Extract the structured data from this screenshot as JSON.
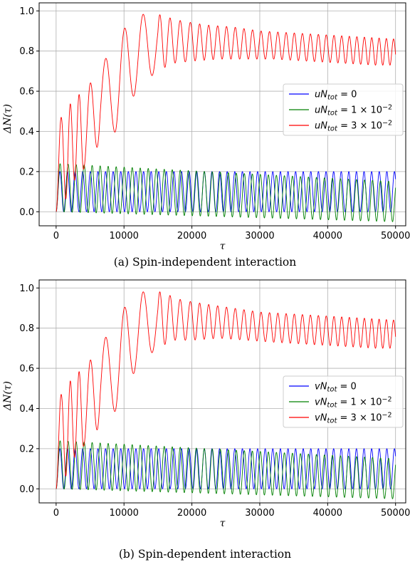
{
  "chart_data": [
    {
      "type": "line",
      "panel": "a",
      "caption": "(a) Spin-independent interaction",
      "xlabel": "τ",
      "ylabel": "ΔN(τ)",
      "xlim": [
        -2500,
        51500
      ],
      "ylim": [
        -0.07,
        1.04
      ],
      "xticks": [
        0,
        10000,
        20000,
        30000,
        40000,
        50000
      ],
      "yticks": [
        0.0,
        0.2,
        0.4,
        0.6,
        0.8,
        1.0
      ],
      "xtick_labels": [
        "0",
        "10000",
        "20000",
        "30000",
        "40000",
        "50000"
      ],
      "ytick_labels": [
        "0.0",
        "0.2",
        "0.4",
        "0.6",
        "0.8",
        "1.0"
      ],
      "grid": true,
      "legend_position": "right",
      "series": [
        {
          "name": "uN_tot = 0",
          "legend_var": "uN",
          "legend_sub": "tot",
          "legend_rhs": "= 0",
          "legend_exp": "",
          "color": "#0000ff",
          "model": {
            "kind": "sq_sine",
            "amp": 0.2,
            "period": 1120
          }
        },
        {
          "name": "uN_tot = 1 × 10^-2",
          "legend_var": "uN",
          "legend_sub": "tot",
          "legend_rhs": "= 1 × 10",
          "legend_exp": "−2",
          "color": "#008000",
          "model": {
            "kind": "decaying_beat",
            "amp": 0.24,
            "period": 1180,
            "offset_end": 0.05,
            "amp_end": 0.2
          }
        },
        {
          "name": "uN_tot = 3 × 10^-2",
          "legend_var": "uN",
          "legend_sub": "tot",
          "legend_rhs": "= 3 × 10",
          "legend_exp": "−2",
          "color": "#ff0000",
          "model": {
            "kind": "rise_osc",
            "peaks": [
              [
                1000,
                0.47
              ],
              [
                2300,
                0.55
              ],
              [
                3600,
                0.59
              ],
              [
                5300,
                0.65
              ],
              [
                7600,
                0.78
              ],
              [
                10400,
                0.93
              ],
              [
                13600,
                1.0
              ],
              [
                16200,
                0.97
              ],
              [
                18500,
                0.95
              ],
              [
                22000,
                0.93
              ],
              [
                26000,
                0.92
              ],
              [
                30000,
                0.9
              ],
              [
                35000,
                0.89
              ],
              [
                40000,
                0.88
              ],
              [
                45000,
                0.87
              ],
              [
                49800,
                0.86
              ]
            ],
            "troughs": [
              [
                0,
                0.0
              ],
              [
                1800,
                0.08
              ],
              [
                3000,
                0.18
              ],
              [
                4300,
                0.22
              ],
              [
                6200,
                0.33
              ],
              [
                8800,
                0.4
              ],
              [
                11800,
                0.6
              ],
              [
                14800,
                0.7
              ],
              [
                17400,
                0.74
              ],
              [
                20000,
                0.75
              ],
              [
                24000,
                0.76
              ],
              [
                28000,
                0.76
              ],
              [
                32000,
                0.76
              ],
              [
                37000,
                0.75
              ],
              [
                42000,
                0.74
              ],
              [
                47000,
                0.73
              ],
              [
                50000,
                0.73
              ]
            ]
          }
        }
      ]
    },
    {
      "type": "line",
      "panel": "b",
      "caption": "(b) Spin-dependent interaction",
      "xlabel": "τ",
      "ylabel": "ΔN(τ)",
      "xlim": [
        -2500,
        51500
      ],
      "ylim": [
        -0.07,
        1.04
      ],
      "xticks": [
        0,
        10000,
        20000,
        30000,
        40000,
        50000
      ],
      "yticks": [
        0.0,
        0.2,
        0.4,
        0.6,
        0.8,
        1.0
      ],
      "xtick_labels": [
        "0",
        "10000",
        "20000",
        "30000",
        "40000",
        "50000"
      ],
      "ytick_labels": [
        "0.0",
        "0.2",
        "0.4",
        "0.6",
        "0.8",
        "1.0"
      ],
      "grid": true,
      "legend_position": "right",
      "series": [
        {
          "name": "vN_tot = 0",
          "legend_var": "vN",
          "legend_sub": "tot",
          "legend_rhs": "= 0",
          "legend_exp": "",
          "color": "#0000ff",
          "model": {
            "kind": "sq_sine",
            "amp": 0.2,
            "period": 1120
          }
        },
        {
          "name": "vN_tot = 1 × 10^-2",
          "legend_var": "vN",
          "legend_sub": "tot",
          "legend_rhs": "= 1 × 10",
          "legend_exp": "−2",
          "color": "#008000",
          "model": {
            "kind": "decaying_beat",
            "amp": 0.24,
            "period": 1180,
            "offset_end": 0.05,
            "amp_end": 0.2
          }
        },
        {
          "name": "vN_tot = 3 × 10^-2",
          "legend_var": "vN",
          "legend_sub": "tot",
          "legend_rhs": "= 3 × 10",
          "legend_exp": "−2",
          "color": "#ff0000",
          "model": {
            "kind": "rise_osc",
            "peaks": [
              [
                1000,
                0.47
              ],
              [
                2300,
                0.55
              ],
              [
                3600,
                0.59
              ],
              [
                5300,
                0.65
              ],
              [
                7600,
                0.77
              ],
              [
                10400,
                0.92
              ],
              [
                13600,
                1.0
              ],
              [
                16200,
                0.97
              ],
              [
                18500,
                0.94
              ],
              [
                22000,
                0.92
              ],
              [
                26000,
                0.9
              ],
              [
                30000,
                0.88
              ],
              [
                35000,
                0.87
              ],
              [
                40000,
                0.86
              ],
              [
                45000,
                0.85
              ],
              [
                49800,
                0.84
              ]
            ],
            "troughs": [
              [
                0,
                0.0
              ],
              [
                1800,
                0.08
              ],
              [
                3000,
                0.18
              ],
              [
                4300,
                0.22
              ],
              [
                6200,
                0.3
              ],
              [
                8800,
                0.39
              ],
              [
                11800,
                0.6
              ],
              [
                14800,
                0.7
              ],
              [
                17400,
                0.74
              ],
              [
                20000,
                0.74
              ],
              [
                24000,
                0.75
              ],
              [
                28000,
                0.74
              ],
              [
                32000,
                0.73
              ],
              [
                37000,
                0.72
              ],
              [
                42000,
                0.71
              ],
              [
                47000,
                0.7
              ],
              [
                50000,
                0.7
              ]
            ]
          }
        }
      ]
    }
  ]
}
